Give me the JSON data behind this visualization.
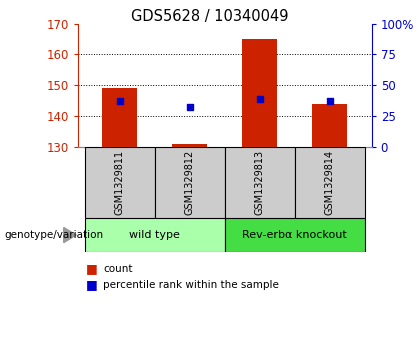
{
  "title": "GDS5628 / 10340049",
  "samples": [
    "GSM1329811",
    "GSM1329812",
    "GSM1329813",
    "GSM1329814"
  ],
  "bar_bottoms": [
    130,
    130,
    130,
    130
  ],
  "bar_tops": [
    149,
    131,
    165,
    144
  ],
  "blue_dots": [
    145,
    143,
    145.5,
    145
  ],
  "ylim": [
    130,
    170
  ],
  "yticks_left": [
    130,
    140,
    150,
    160,
    170
  ],
  "yticks_right": [
    0,
    25,
    50,
    75,
    100
  ],
  "ytick_right_labels": [
    "0",
    "25",
    "50",
    "75",
    "100%"
  ],
  "bar_color": "#cc2200",
  "dot_color": "#0000cc",
  "bar_width": 0.5,
  "groups": [
    {
      "label": "wild type",
      "samples": [
        0,
        1
      ],
      "color": "#aaffaa"
    },
    {
      "label": "Rev-erbα knockout",
      "samples": [
        2,
        3
      ],
      "color": "#44dd44"
    }
  ],
  "legend_items": [
    {
      "color": "#cc2200",
      "label": "count"
    },
    {
      "color": "#0000cc",
      "label": "percentile rank within the sample"
    }
  ],
  "genotype_label": "genotype/variation",
  "left_axis_color": "#cc2200",
  "right_axis_color": "#0000cc",
  "tick_label_area_color": "#cccccc"
}
